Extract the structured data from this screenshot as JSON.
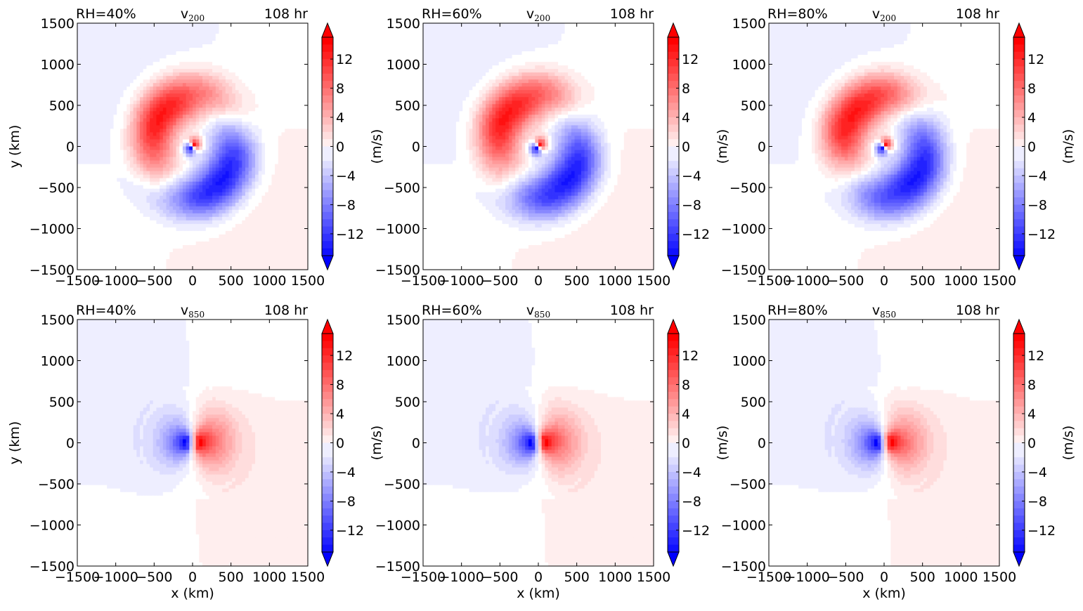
{
  "chart_data": [
    {
      "type": "heatmap",
      "title_left": "RH=40%",
      "title_center": "v",
      "title_center_sub": "200",
      "title_right": "108 hr",
      "xlabel": "",
      "ylabel": "y (km)",
      "colorbar_label": "(m/s)",
      "xlim": [
        -1500,
        1500
      ],
      "ylim": [
        -1500,
        1500
      ],
      "xticks": [
        "−1500",
        "−1000",
        "−500",
        "0",
        "500",
        "1000",
        "1500"
      ],
      "yticks": [
        "−1500",
        "−1000",
        "−500",
        "0",
        "500",
        "1000",
        "1500"
      ],
      "clim": [
        -15,
        15
      ],
      "colorbar_ticks": [
        "12",
        "8",
        "4",
        "0",
        "−4",
        "−8",
        "−12"
      ],
      "pattern": "upper",
      "max_abs_value": 15
    },
    {
      "type": "heatmap",
      "title_left": "RH=60%",
      "title_center": "v",
      "title_center_sub": "200",
      "title_right": "108 hr",
      "xlabel": "",
      "ylabel": "",
      "colorbar_label": "(m/s)",
      "xlim": [
        -1500,
        1500
      ],
      "ylim": [
        -1500,
        1500
      ],
      "xticks": [
        "−1500",
        "−1000",
        "−500",
        "0",
        "500",
        "1000",
        "1500"
      ],
      "yticks": [
        "−1500",
        "−1000",
        "−500",
        "0",
        "500",
        "1000",
        "1500"
      ],
      "clim": [
        -15,
        15
      ],
      "colorbar_ticks": [
        "12",
        "8",
        "4",
        "0",
        "−4",
        "−8",
        "−12"
      ],
      "pattern": "upper",
      "max_abs_value": 15
    },
    {
      "type": "heatmap",
      "title_left": "RH=80%",
      "title_center": "v",
      "title_center_sub": "200",
      "title_right": "108 hr",
      "xlabel": "",
      "ylabel": "",
      "colorbar_label": "(m/s)",
      "xlim": [
        -1500,
        1500
      ],
      "ylim": [
        -1500,
        1500
      ],
      "xticks": [
        "−1500",
        "−1000",
        "−500",
        "0",
        "500",
        "1000",
        "1500"
      ],
      "yticks": [
        "−1500",
        "−1000",
        "−500",
        "0",
        "500",
        "1000",
        "1500"
      ],
      "clim": [
        -15,
        15
      ],
      "colorbar_ticks": [
        "12",
        "8",
        "4",
        "0",
        "−4",
        "−8",
        "−12"
      ],
      "pattern": "upper",
      "max_abs_value": 15
    },
    {
      "type": "heatmap",
      "title_left": "RH=40%",
      "title_center": "v",
      "title_center_sub": "850",
      "title_right": "108 hr",
      "xlabel": "x (km)",
      "ylabel": "y (km)",
      "colorbar_label": "(m/s)",
      "xlim": [
        -1500,
        1500
      ],
      "ylim": [
        -1500,
        1500
      ],
      "xticks": [
        "−1500",
        "−1000",
        "−500",
        "0",
        "500",
        "1000",
        "1500"
      ],
      "yticks": [
        "−1500",
        "−1000",
        "−500",
        "0",
        "500",
        "1000",
        "1500"
      ],
      "clim": [
        -15,
        15
      ],
      "colorbar_ticks": [
        "12",
        "8",
        "4",
        "0",
        "−4",
        "−8",
        "−12"
      ],
      "pattern": "lower",
      "max_abs_value": 15
    },
    {
      "type": "heatmap",
      "title_left": "RH=60%",
      "title_center": "v",
      "title_center_sub": "850",
      "title_right": "108 hr",
      "xlabel": "x (km)",
      "ylabel": "",
      "colorbar_label": "(m/s)",
      "xlim": [
        -1500,
        1500
      ],
      "ylim": [
        -1500,
        1500
      ],
      "xticks": [
        "−1500",
        "−1000",
        "−500",
        "0",
        "500",
        "1000",
        "1500"
      ],
      "yticks": [
        "−1500",
        "−1000",
        "−500",
        "0",
        "500",
        "1000",
        "1500"
      ],
      "clim": [
        -15,
        15
      ],
      "colorbar_ticks": [
        "12",
        "8",
        "4",
        "0",
        "−4",
        "−8",
        "−12"
      ],
      "pattern": "lower",
      "max_abs_value": 15
    },
    {
      "type": "heatmap",
      "title_left": "RH=80%",
      "title_center": "v",
      "title_center_sub": "850",
      "title_right": "108 hr",
      "xlabel": "x (km)",
      "ylabel": "",
      "colorbar_label": "(m/s)",
      "xlim": [
        -1500,
        1500
      ],
      "ylim": [
        -1500,
        1500
      ],
      "xticks": [
        "−1500",
        "−1000",
        "−500",
        "0",
        "500",
        "1000",
        "1500"
      ],
      "yticks": [
        "−1500",
        "−1000",
        "−500",
        "0",
        "500",
        "1000",
        "1500"
      ],
      "clim": [
        -15,
        15
      ],
      "colorbar_ticks": [
        "12",
        "8",
        "4",
        "0",
        "−4",
        "−8",
        "−12"
      ],
      "pattern": "lower",
      "max_abs_value": 15
    }
  ],
  "colors": {
    "negative": "#0000ff",
    "positive": "#ff0000",
    "neutral": "#ffffff"
  }
}
